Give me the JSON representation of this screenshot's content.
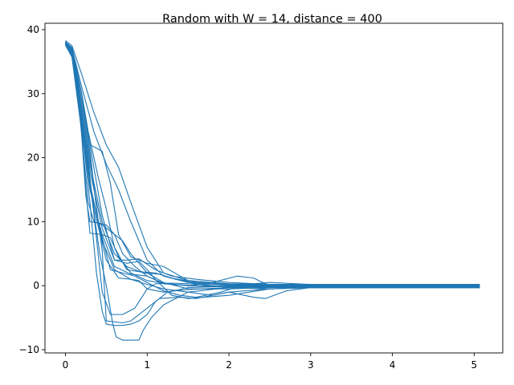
{
  "chart_data": {
    "type": "line",
    "title": "Random with W = 14, distance = 400",
    "xlabel": "",
    "ylabel": "",
    "xlim": [
      -0.25,
      5.35
    ],
    "ylim": [
      -10.5,
      41
    ],
    "xticks": [
      0,
      1,
      2,
      3,
      4,
      5
    ],
    "yticks": [
      -10,
      0,
      10,
      20,
      30,
      40
    ],
    "grid": false,
    "color": "#1f77b4",
    "series": [
      {
        "x": [
          0,
          0.08,
          0.2,
          0.35,
          0.5,
          0.65,
          0.8,
          1.0,
          1.2,
          1.5,
          2.0,
          2.5,
          3.0,
          4.0,
          5.07
        ],
        "y": [
          38.3,
          37.5,
          33,
          27,
          22,
          18.5,
          13,
          6,
          2,
          0.8,
          0.3,
          0.2,
          0.2,
          0.2,
          0.2
        ]
      },
      {
        "x": [
          0,
          0.08,
          0.2,
          0.35,
          0.5,
          0.65,
          0.8,
          1.0,
          1.2,
          1.5,
          2.0,
          2.5,
          3.0,
          4.0,
          5.07
        ],
        "y": [
          38.1,
          37.2,
          31,
          24,
          19,
          15,
          10,
          4,
          1.5,
          0.5,
          0.1,
          0.0,
          0.0,
          0.0,
          0.0
        ]
      },
      {
        "x": [
          0,
          0.08,
          0.2,
          0.28,
          0.4,
          0.5,
          0.6,
          0.75,
          0.9,
          1.1,
          1.3,
          1.6,
          2.0,
          2.5,
          3.0,
          4.0,
          5.07
        ],
        "y": [
          38.0,
          37.0,
          30,
          24,
          17,
          12,
          6,
          2.5,
          2.2,
          2.0,
          1.2,
          0.5,
          0.1,
          0.0,
          0.0,
          0.0,
          0.0
        ]
      },
      {
        "x": [
          0,
          0.08,
          0.18,
          0.25,
          0.3,
          0.45,
          0.55,
          0.65,
          0.8,
          1.0,
          1.3,
          1.6,
          2.0,
          2.5,
          3.0,
          4.0,
          5.07
        ],
        "y": [
          37.9,
          36.5,
          28,
          15,
          8.2,
          8.0,
          7.5,
          4.5,
          2.0,
          0.8,
          0.2,
          0.0,
          0.0,
          0.0,
          0.0,
          0.0,
          0.0
        ]
      },
      {
        "x": [
          0,
          0.08,
          0.18,
          0.28,
          0.35,
          0.45,
          0.6,
          0.7,
          0.85,
          1.0,
          1.2,
          1.5,
          2.0,
          2.5,
          3.0,
          4.0,
          5.07
        ],
        "y": [
          37.8,
          36.2,
          26,
          13,
          10,
          9.5,
          8,
          5,
          3,
          1.5,
          0.4,
          0.0,
          -0.2,
          -0.2,
          -0.2,
          -0.2,
          -0.2
        ]
      },
      {
        "x": [
          0,
          0.08,
          0.2,
          0.3,
          0.35,
          0.45,
          0.55,
          0.65,
          0.8,
          1.0,
          1.2,
          1.5,
          2.0,
          2.5,
          3.0,
          4.0,
          5.07
        ],
        "y": [
          38.0,
          36.8,
          29,
          22,
          21.7,
          21,
          16,
          8,
          4.5,
          3.5,
          3.0,
          0.8,
          0.2,
          0.1,
          0.1,
          0.1,
          0.1
        ]
      },
      {
        "x": [
          0,
          0.08,
          0.2,
          0.3,
          0.38,
          0.45,
          0.5,
          0.6,
          0.7,
          0.8,
          0.9,
          1.0,
          1.1,
          1.25,
          1.5,
          2.0,
          2.5,
          3.0,
          4.0,
          5.07
        ],
        "y": [
          37.7,
          36.0,
          25,
          13,
          2,
          -4,
          -6,
          -6.2,
          -6.2,
          -6.0,
          -5.5,
          -4.5,
          -2.5,
          -1.0,
          -0.3,
          -0.1,
          -0.1,
          -0.1,
          -0.1,
          -0.1
        ]
      },
      {
        "x": [
          0,
          0.08,
          0.2,
          0.32,
          0.42,
          0.5,
          0.58,
          0.62,
          0.7,
          0.9,
          0.95,
          1.05,
          1.2,
          1.5,
          2.0,
          2.5,
          3.0,
          4.0,
          5.07
        ],
        "y": [
          37.6,
          35.8,
          26,
          14,
          5,
          0,
          -6.0,
          -8.0,
          -8.5,
          -8.5,
          -7,
          -5,
          -3,
          -1,
          -0.3,
          -0.2,
          -0.2,
          -0.2,
          -0.2
        ]
      },
      {
        "x": [
          0,
          0.08,
          0.2,
          0.3,
          0.4,
          0.45,
          0.55,
          0.7,
          0.85,
          1.0,
          1.1,
          1.3,
          1.5,
          2.0,
          2.5,
          3.0,
          4.0,
          5.07
        ],
        "y": [
          37.8,
          36.3,
          27,
          17,
          5,
          -1,
          -4.5,
          -4.5,
          -3.5,
          -0.5,
          0.3,
          0.4,
          0.3,
          0.2,
          0.2,
          0.2,
          0.2,
          0.2
        ]
      },
      {
        "x": [
          0,
          0.08,
          0.2,
          0.3,
          0.45,
          0.5,
          0.7,
          0.8,
          1.0,
          1.15,
          1.4,
          1.6,
          2.0,
          2.5,
          3.0,
          4.0,
          5.07
        ],
        "y": [
          37.9,
          36.6,
          28,
          20,
          5.5,
          -5.5,
          -5.8,
          -5.5,
          -3.5,
          -2.0,
          -1.8,
          -2.0,
          -1.0,
          -0.5,
          -0.3,
          -0.3,
          -0.3
        ]
      },
      {
        "x": [
          0,
          0.08,
          0.2,
          0.3,
          0.45,
          0.6,
          0.75,
          0.9,
          1.0,
          1.1,
          1.3,
          1.5,
          2.0,
          2.5,
          3.0,
          4.0,
          5.07
        ],
        "y": [
          37.7,
          36.4,
          27,
          18,
          9,
          4,
          3.5,
          3.8,
          2.5,
          1.0,
          -1.5,
          -2.0,
          -1.5,
          -0.5,
          -0.3,
          -0.3,
          -0.3
        ]
      },
      {
        "x": [
          0,
          0.08,
          0.2,
          0.3,
          0.4,
          0.55,
          0.7,
          0.85,
          1.0,
          1.2,
          1.4,
          1.6,
          1.9,
          2.2,
          2.5,
          3.0,
          4.0,
          5.07
        ],
        "y": [
          38.0,
          36.9,
          29,
          21,
          10,
          2.5,
          2.0,
          1.5,
          0.5,
          -0.8,
          -1.5,
          -1.8,
          -1.0,
          0.2,
          0.5,
          0.2,
          0.2,
          0.2
        ]
      },
      {
        "x": [
          0,
          0.08,
          0.2,
          0.3,
          0.45,
          0.6,
          0.8,
          1.0,
          1.2,
          1.5,
          1.8,
          2.1,
          2.3,
          2.5,
          2.8,
          3.0,
          4.0,
          5.07
        ],
        "y": [
          37.6,
          35.9,
          25,
          15,
          8,
          3,
          1.8,
          1.5,
          0.3,
          0.0,
          0.5,
          1.5,
          1.2,
          0.0,
          -0.3,
          -0.3,
          -0.3,
          -0.3
        ]
      },
      {
        "x": [
          0,
          0.08,
          0.2,
          0.3,
          0.45,
          0.6,
          0.8,
          1.0,
          1.2,
          1.5,
          1.8,
          2.0,
          2.3,
          2.45,
          2.7,
          3.0,
          4.0,
          5.07
        ],
        "y": [
          37.8,
          36.1,
          26,
          16,
          7,
          2.5,
          1.0,
          0.2,
          -0.5,
          -1.0,
          -1.5,
          -1.0,
          -1.8,
          -2.0,
          -0.8,
          -0.3,
          -0.3,
          -0.3
        ]
      },
      {
        "x": [
          0,
          0.08,
          0.2,
          0.3,
          0.45,
          0.6,
          0.75,
          0.9,
          1.1,
          1.3,
          1.6,
          2.0,
          2.5,
          3.0,
          4.0,
          5.07
        ],
        "y": [
          38.1,
          37.0,
          30,
          22,
          11,
          4,
          4.0,
          4.2,
          2.5,
          1.5,
          1.0,
          0.5,
          0.2,
          0.1,
          0.1,
          0.1
        ]
      },
      {
        "x": [
          0,
          0.08,
          0.2,
          0.3,
          0.45,
          0.6,
          0.75,
          0.95,
          1.15,
          1.35,
          1.6,
          2.0,
          2.5,
          3.0,
          4.0,
          5.07
        ],
        "y": [
          37.9,
          36.5,
          28,
          19,
          10,
          5,
          3,
          2.0,
          1.8,
          1.0,
          0.3,
          -0.3,
          -0.5,
          -0.3,
          -0.3,
          -0.3
        ]
      },
      {
        "x": [
          0,
          0.08,
          0.18,
          0.25,
          0.3,
          0.4,
          0.5,
          0.6,
          0.7,
          0.8,
          1.0,
          1.2,
          1.5,
          2.0,
          2.5,
          3.0,
          4.0,
          5.07
        ],
        "y": [
          37.7,
          36.2,
          27,
          14,
          10,
          9.8,
          9.5,
          8,
          7,
          5,
          2.0,
          0.5,
          -0.5,
          -0.5,
          -0.3,
          -0.3,
          -0.3,
          -0.3
        ]
      },
      {
        "x": [
          0,
          0.08,
          0.2,
          0.35,
          0.5,
          0.65,
          0.8,
          0.9,
          1.0,
          1.2,
          1.5,
          2.0,
          2.5,
          3.0,
          4.0,
          5.07
        ],
        "y": [
          37.6,
          35.7,
          24,
          12,
          4,
          1.2,
          1.0,
          0.8,
          -0.5,
          -1.0,
          -0.6,
          -0.3,
          -0.2,
          -0.2,
          -0.2,
          -0.2
        ]
      }
    ]
  }
}
